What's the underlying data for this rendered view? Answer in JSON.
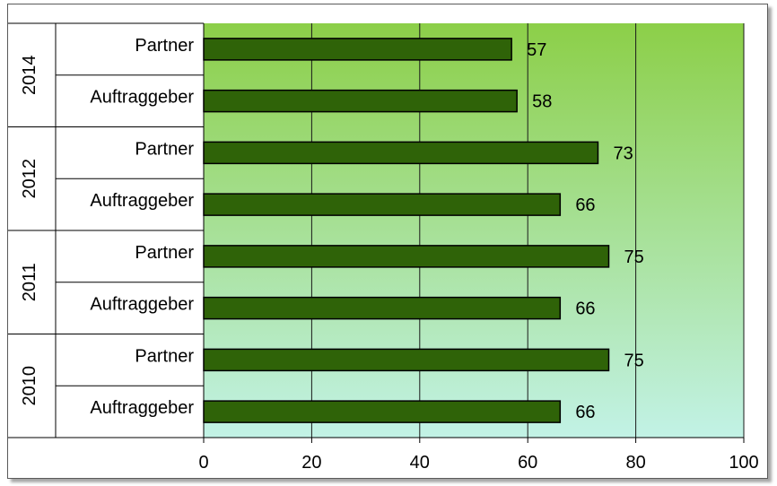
{
  "chart_data": {
    "type": "bar",
    "orientation": "horizontal",
    "groups": [
      {
        "label": "2014",
        "rows": [
          {
            "category": "Partner",
            "value": 57
          },
          {
            "category": "Auftraggeber",
            "value": 58
          }
        ]
      },
      {
        "label": "2012",
        "rows": [
          {
            "category": "Partner",
            "value": 73
          },
          {
            "category": "Auftraggeber",
            "value": 66
          }
        ]
      },
      {
        "label": "2011",
        "rows": [
          {
            "category": "Partner",
            "value": 75
          },
          {
            "category": "Auftraggeber",
            "value": 66
          }
        ]
      },
      {
        "label": "2010",
        "rows": [
          {
            "category": "Partner",
            "value": 75
          },
          {
            "category": "Auftraggeber",
            "value": 66
          }
        ]
      }
    ],
    "xlim": [
      0,
      100
    ],
    "xticks": [
      0,
      20,
      40,
      60,
      80,
      100
    ],
    "grid": "vertical",
    "legend": "none",
    "bar_color": "#2f6308",
    "plot_gradient": [
      "#8ccf48",
      "#c2f2e6"
    ]
  }
}
